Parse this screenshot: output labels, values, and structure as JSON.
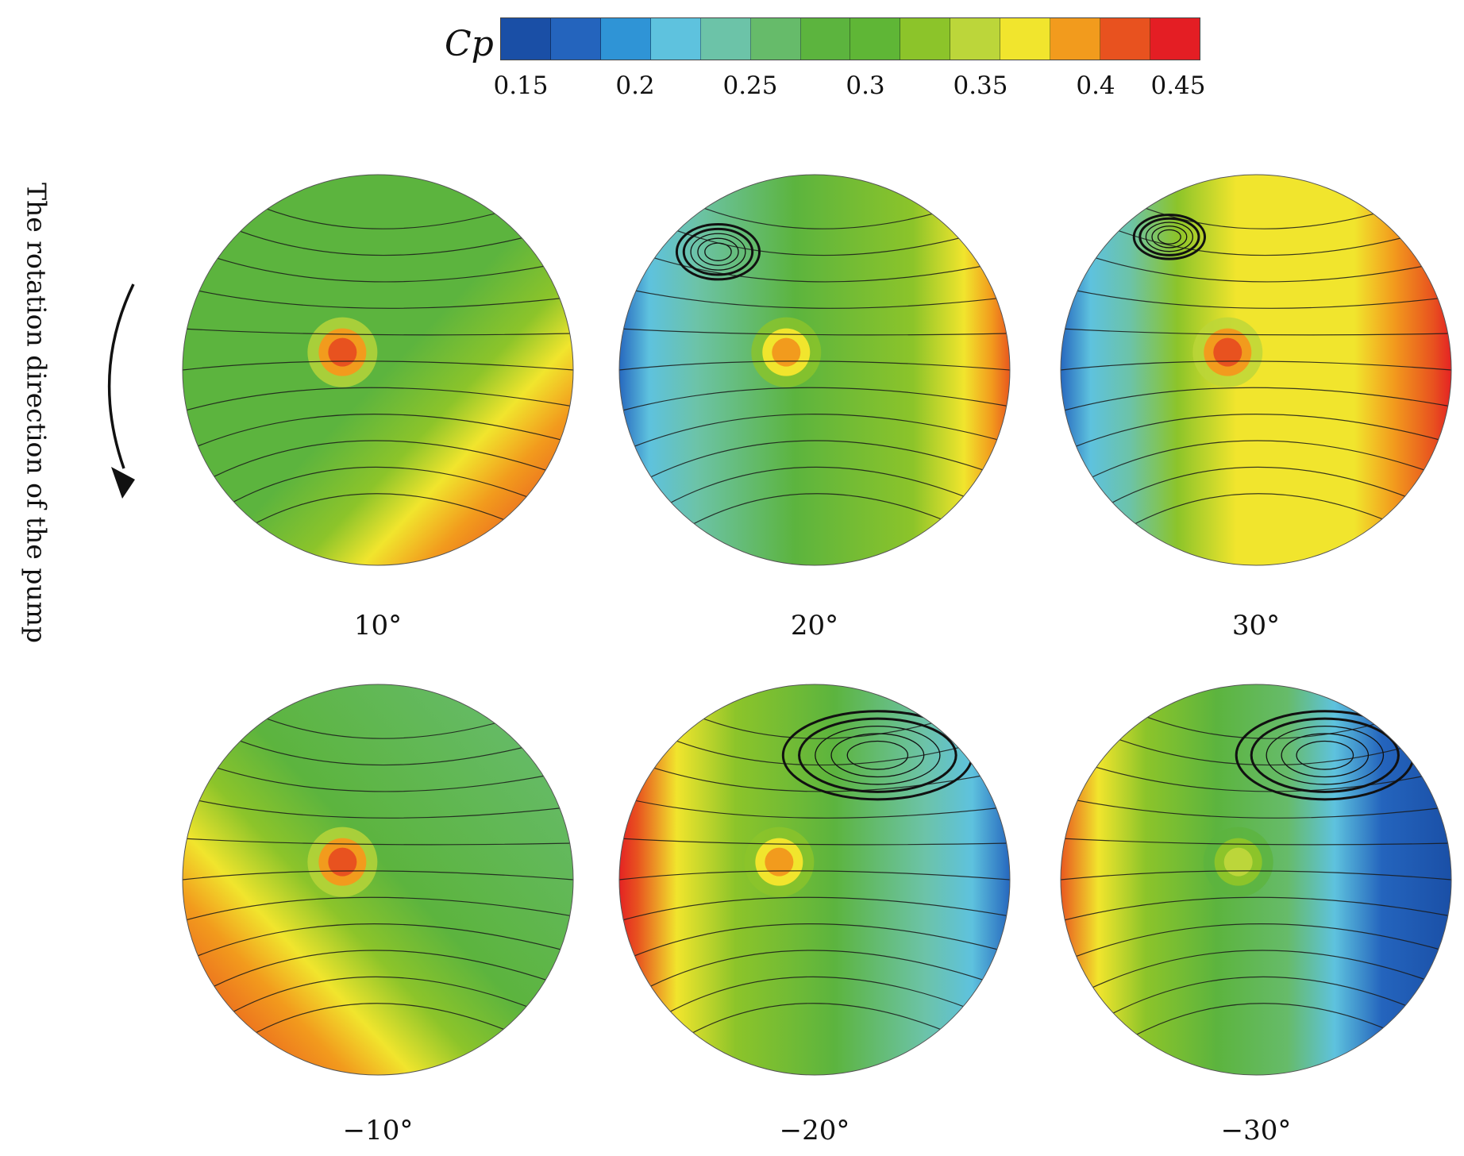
{
  "colorbar": {
    "label": "Cp",
    "ticks": [
      "0.15",
      "0.2",
      "0.25",
      "0.3",
      "0.35",
      "0.4",
      "0.45"
    ],
    "colors": [
      "#1a4fa6",
      "#2464bd",
      "#2f94d6",
      "#5ec2de",
      "#6cc3a8",
      "#66bb6a",
      "#5cb43e",
      "#5fb636",
      "#8cc42a",
      "#bcd63a",
      "#f1e52d",
      "#f29b1d",
      "#e8521f",
      "#e41e24"
    ]
  },
  "rotation_label": "The rotation direction of the pump",
  "panels": [
    {
      "label": "10°"
    },
    {
      "label": "20°"
    },
    {
      "label": "30°"
    },
    {
      "label": "−10°"
    },
    {
      "label": "−20°"
    },
    {
      "label": "−30°"
    }
  ]
}
